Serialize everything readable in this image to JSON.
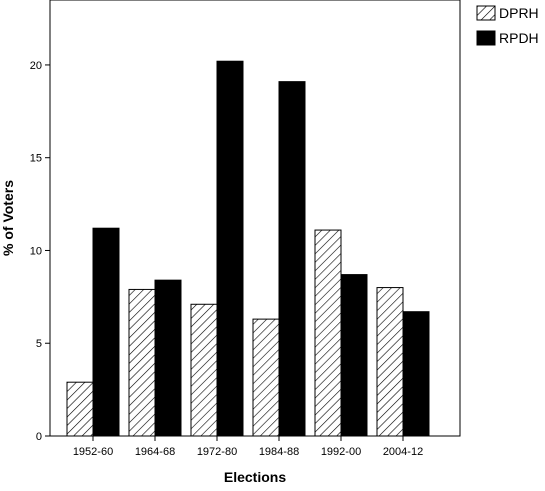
{
  "chart_data": {
    "type": "bar",
    "title": "",
    "xlabel": "Elections",
    "ylabel": "% of Voters",
    "categories": [
      "1952-60",
      "1964-68",
      "1972-80",
      "1984-88",
      "1992-00",
      "2004-12"
    ],
    "series": [
      {
        "name": "DPRH",
        "fill": "hatched",
        "values": [
          2.9,
          7.9,
          7.1,
          6.3,
          11.1,
          8.0
        ]
      },
      {
        "name": "RPDH",
        "fill": "#000000",
        "values": [
          11.2,
          8.4,
          20.2,
          19.1,
          8.7,
          6.7
        ]
      }
    ],
    "ylim": [
      0,
      23.5
    ],
    "yticks": [
      0,
      5,
      10,
      15,
      20
    ],
    "grid": false,
    "legend_position": "top-right"
  }
}
